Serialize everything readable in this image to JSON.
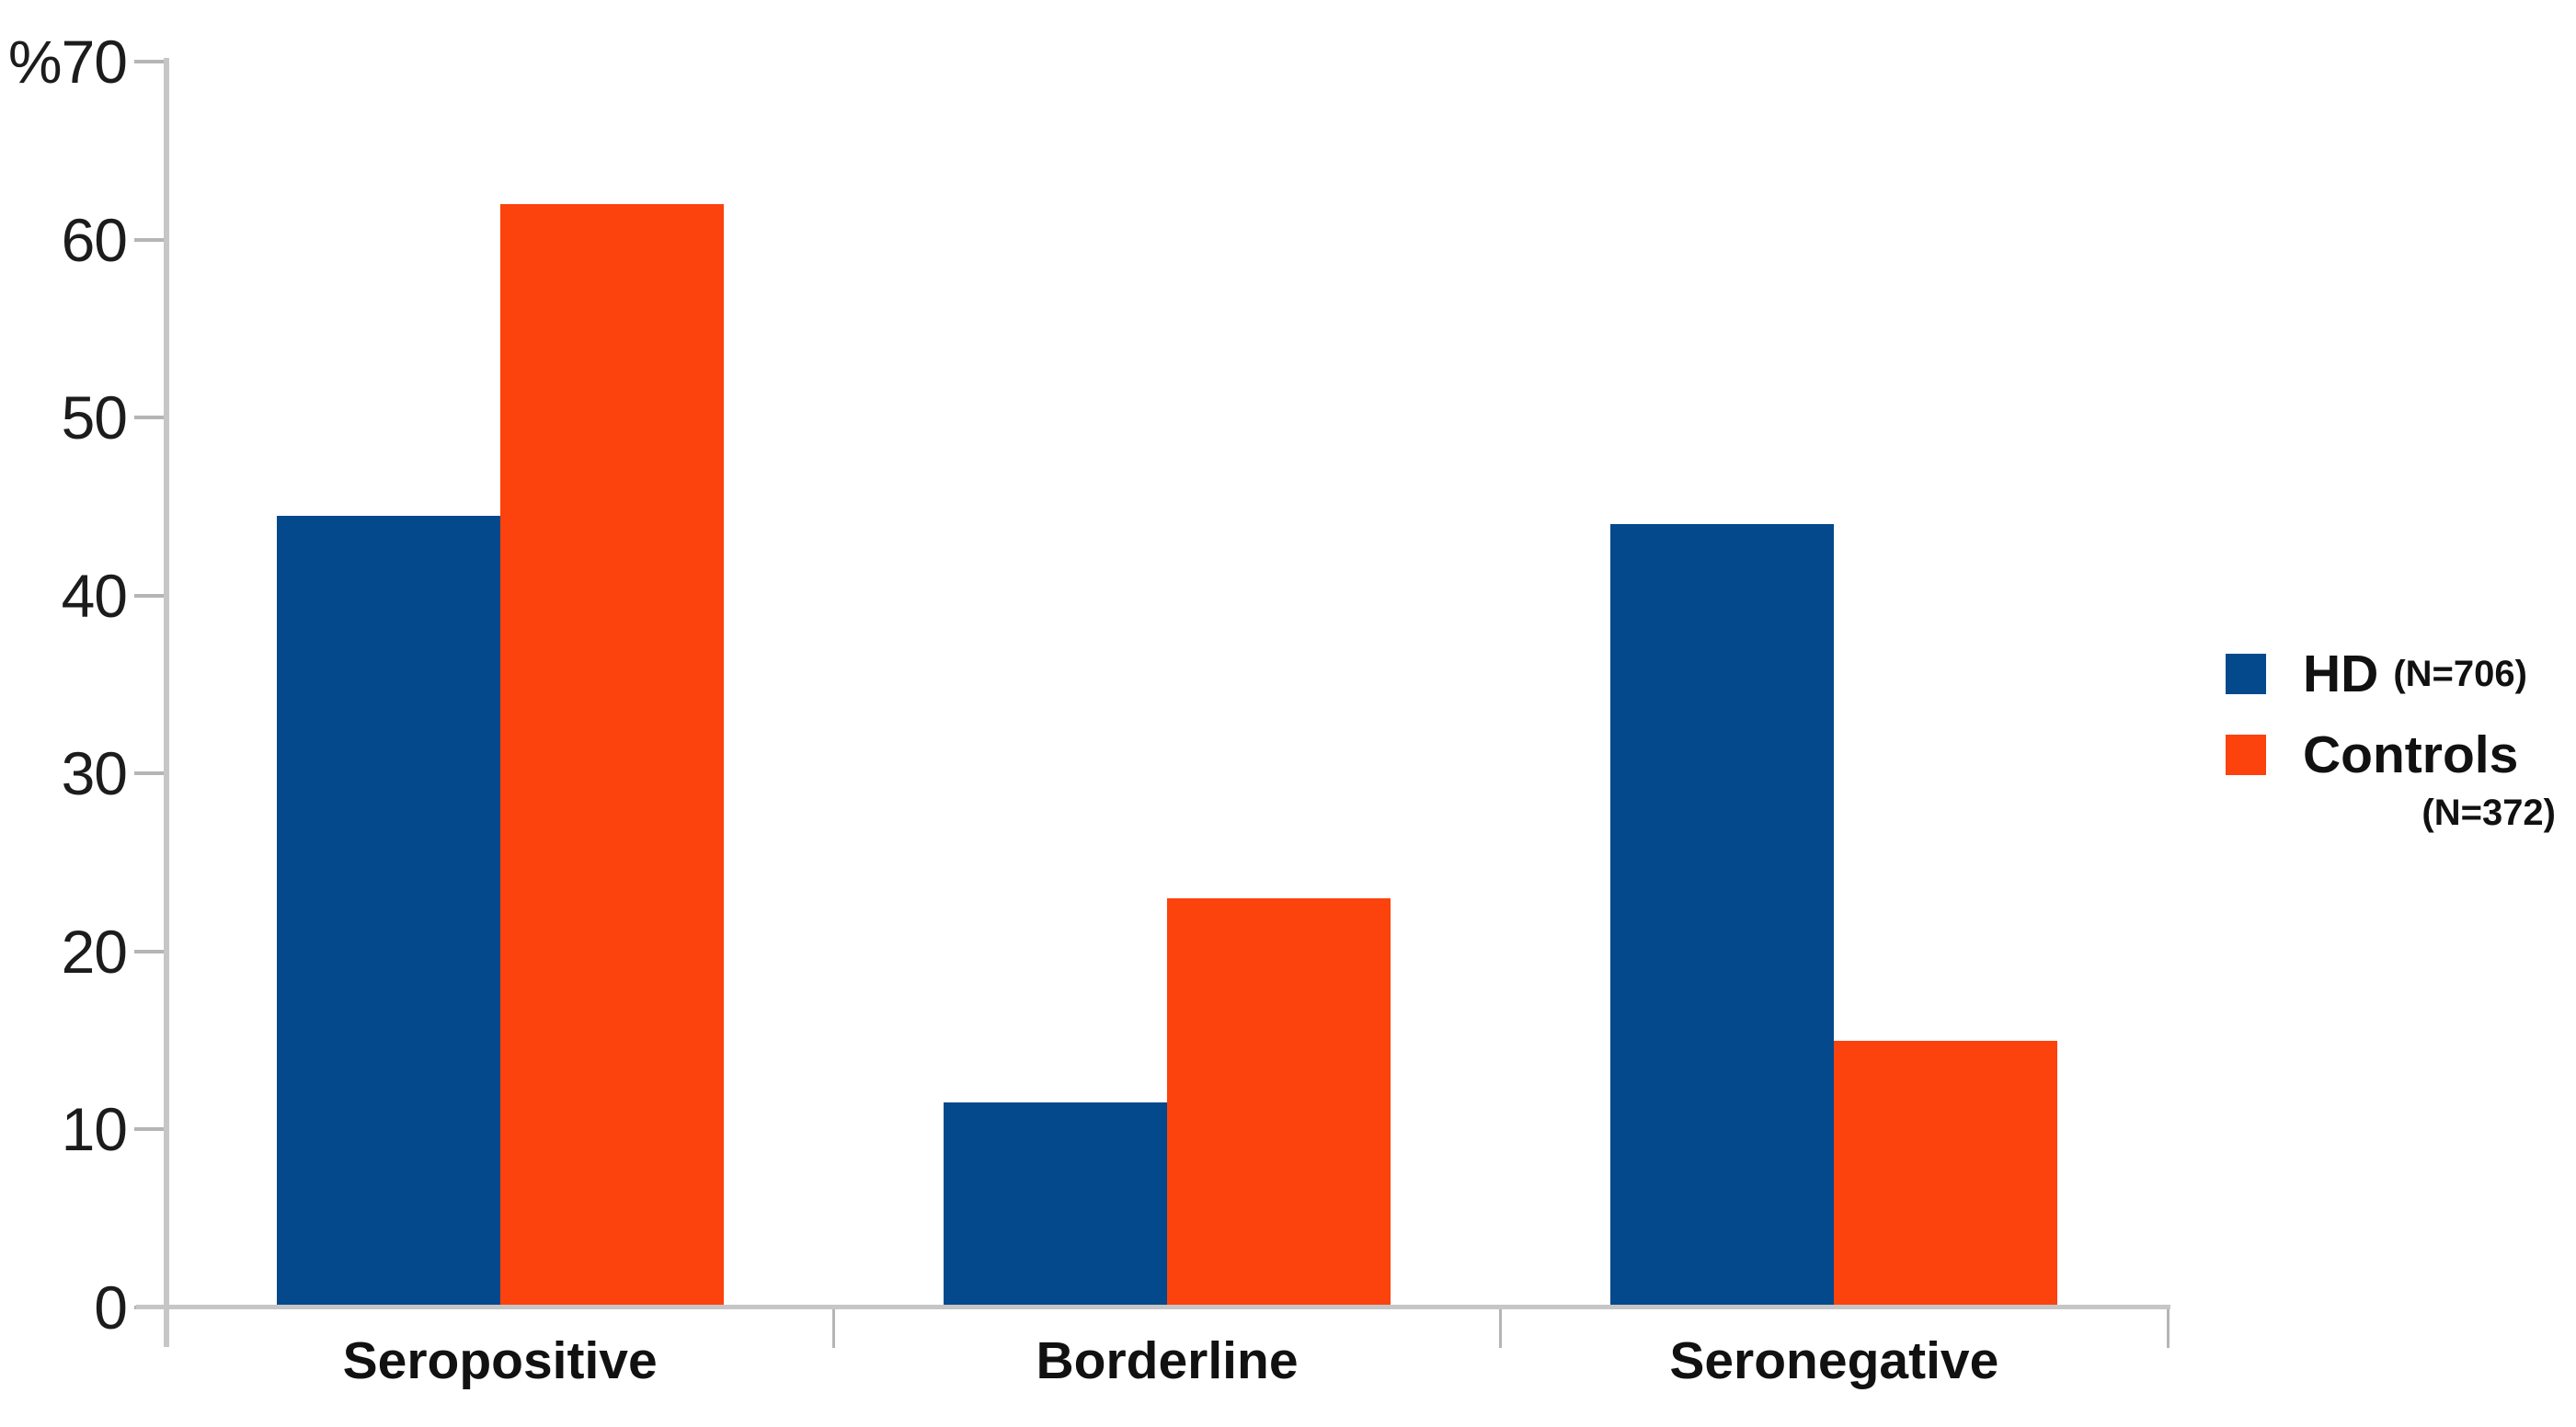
{
  "chart_data": {
    "type": "bar",
    "title": "",
    "y_axis_unit": "%",
    "categories": [
      "Seropositive",
      "Borderline",
      "Seronegative"
    ],
    "series": [
      {
        "name": "HD",
        "n_label": "(N=706)",
        "color": "#03498C",
        "values": [
          44.5,
          11.5,
          44
        ]
      },
      {
        "name": "Controls",
        "n_label": "(N=372)",
        "color": "#FC420D",
        "values": [
          62,
          23,
          15
        ]
      }
    ],
    "ylim": [
      0,
      70
    ],
    "ytick_interval": 10,
    "ytick_labels": [
      "0",
      "10",
      "20",
      "30",
      "40",
      "50",
      "60",
      "%70"
    ],
    "grid": false,
    "legend_position": "right",
    "axis_color": "#c6c6c6",
    "tick_color": "#b5b5b5",
    "text_color": "#1c1c1c"
  }
}
